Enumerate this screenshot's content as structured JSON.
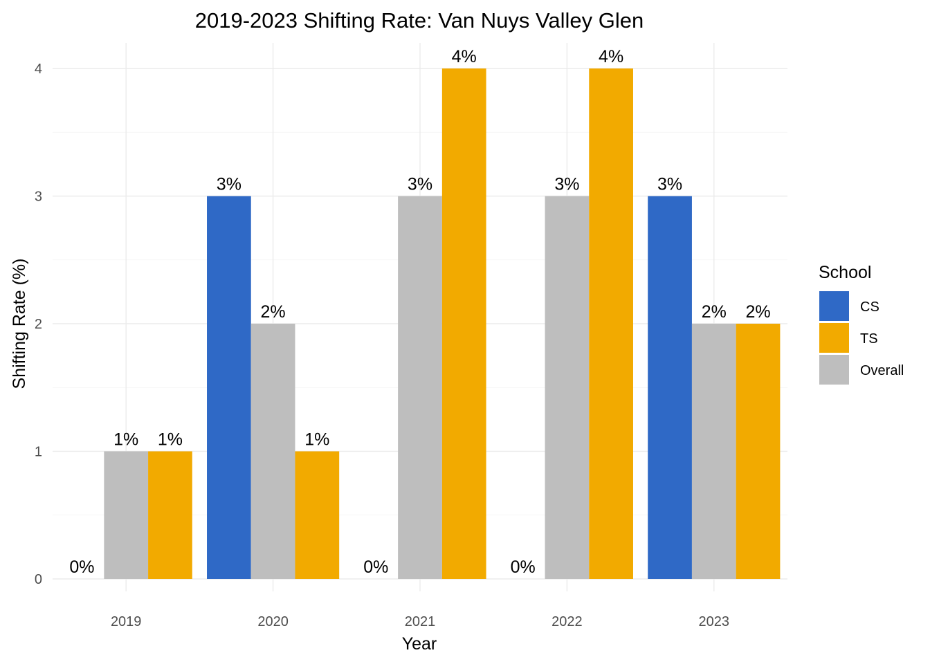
{
  "chart_data": {
    "type": "bar",
    "title": "2019-2023 Shifting Rate: Van Nuys Valley Glen",
    "xlabel": "Year",
    "ylabel": "Shifting Rate (%)",
    "categories": [
      "2019",
      "2020",
      "2021",
      "2022",
      "2023"
    ],
    "series": [
      {
        "name": "CS",
        "color": "#2f69c6",
        "values": [
          0,
          3,
          0,
          0,
          3
        ],
        "labels": [
          "0%",
          "3%",
          "0%",
          "0%",
          "3%"
        ]
      },
      {
        "name": "Overall",
        "color": "#bebebe",
        "values": [
          1,
          2,
          3,
          3,
          2
        ],
        "labels": [
          "1%",
          "2%",
          "3%",
          "3%",
          "2%"
        ]
      },
      {
        "name": "TS",
        "color": "#f2aa00",
        "values": [
          1,
          1,
          4,
          4,
          2
        ],
        "labels": [
          "1%",
          "1%",
          "4%",
          "4%",
          "2%"
        ]
      }
    ],
    "ylim": [
      0,
      4
    ],
    "yticks": [
      0,
      1,
      2,
      3,
      4
    ],
    "ytick_labels": [
      "0",
      "1",
      "2",
      "3",
      "4"
    ],
    "grid": true,
    "legend": {
      "title": "School",
      "position": "right",
      "order": [
        "CS",
        "TS",
        "Overall"
      ]
    }
  }
}
